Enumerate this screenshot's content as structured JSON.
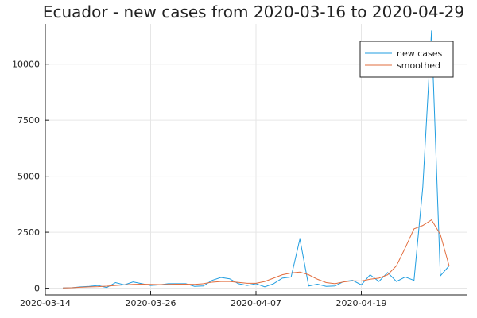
{
  "chart_data": {
    "type": "line",
    "title": "Ecuador - new cases from 2020-03-16 to 2020-04-29",
    "xlabel": "",
    "ylabel": "",
    "x": [
      "2020-03-16",
      "2020-03-17",
      "2020-03-18",
      "2020-03-19",
      "2020-03-20",
      "2020-03-21",
      "2020-03-22",
      "2020-03-23",
      "2020-03-24",
      "2020-03-25",
      "2020-03-26",
      "2020-03-27",
      "2020-03-28",
      "2020-03-29",
      "2020-03-30",
      "2020-03-31",
      "2020-04-01",
      "2020-04-02",
      "2020-04-03",
      "2020-04-04",
      "2020-04-05",
      "2020-04-06",
      "2020-04-07",
      "2020-04-08",
      "2020-04-09",
      "2020-04-10",
      "2020-04-11",
      "2020-04-12",
      "2020-04-13",
      "2020-04-14",
      "2020-04-15",
      "2020-04-16",
      "2020-04-17",
      "2020-04-18",
      "2020-04-19",
      "2020-04-20",
      "2020-04-21",
      "2020-04-22",
      "2020-04-23",
      "2020-04-24",
      "2020-04-25",
      "2020-04-26",
      "2020-04-27",
      "2020-04-28",
      "2020-04-29"
    ],
    "x_ticks": [
      "2020-03-14",
      "2020-03-26",
      "2020-04-07",
      "2020-04-19"
    ],
    "y_ticks": [
      0,
      2500,
      5000,
      7500,
      10000
    ],
    "ylim": [
      -300,
      11800
    ],
    "xlim": [
      "2020-03-14",
      "2020-05-01"
    ],
    "grid": true,
    "legend_position": "top-right",
    "series": [
      {
        "name": "new cases",
        "color": "#1f9de0",
        "values": [
          10,
          20,
          60,
          80,
          120,
          30,
          250,
          150,
          280,
          200,
          120,
          150,
          200,
          200,
          200,
          80,
          100,
          350,
          480,
          420,
          200,
          120,
          200,
          60,
          200,
          450,
          500,
          2200,
          100,
          180,
          80,
          100,
          300,
          350,
          150,
          600,
          300,
          700,
          300,
          500,
          350,
          4500,
          11500,
          550,
          1000
        ]
      },
      {
        "name": "smoothed",
        "color": "#e26d3e",
        "values": [
          10,
          20,
          40,
          60,
          70,
          90,
          120,
          150,
          170,
          180,
          170,
          160,
          170,
          180,
          180,
          170,
          200,
          270,
          300,
          300,
          260,
          220,
          220,
          300,
          450,
          600,
          680,
          720,
          600,
          400,
          250,
          200,
          280,
          330,
          320,
          400,
          450,
          600,
          1000,
          1800,
          2650,
          2800,
          3050,
          2400,
          1000
        ]
      }
    ]
  }
}
